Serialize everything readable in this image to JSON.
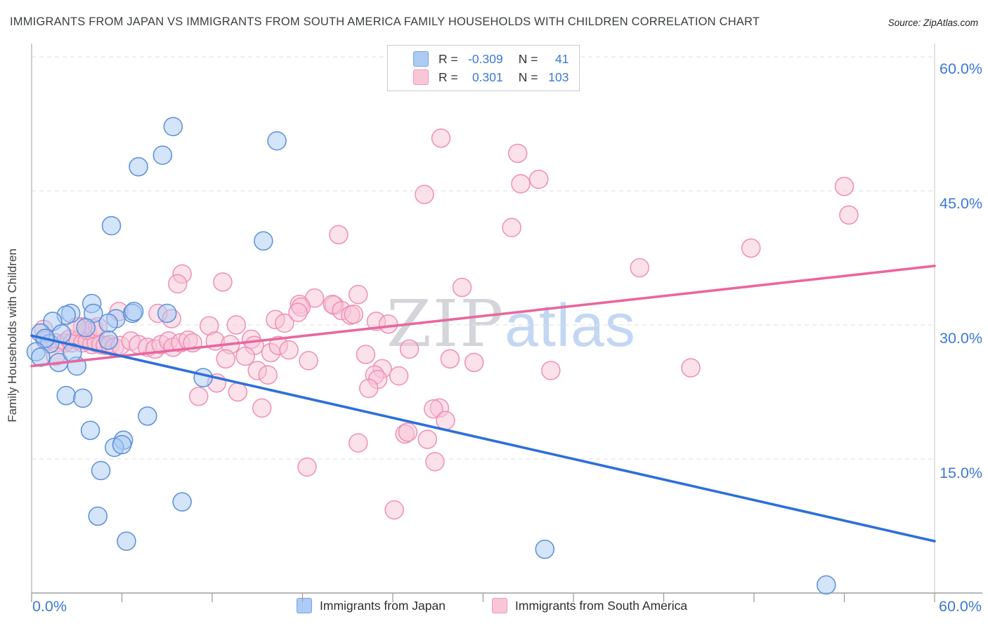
{
  "header": {
    "title": "IMMIGRANTS FROM JAPAN VS IMMIGRANTS FROM SOUTH AMERICA FAMILY HOUSEHOLDS WITH CHILDREN CORRELATION CHART",
    "source": "Source: ZipAtlas.com"
  },
  "stats_legend": {
    "rows": [
      {
        "series": "Immigrants from Japan",
        "r_label": "R =",
        "r_value": "-0.309",
        "n_label": "N =",
        "n_value": "41"
      },
      {
        "series": "Immigrants from South America",
        "r_label": "R =",
        "r_value": "0.301",
        "n_label": "N =",
        "n_value": "103"
      }
    ]
  },
  "watermark": {
    "zip": "ZIP",
    "atlas": "atlas"
  },
  "bottom_legend": {
    "items": [
      {
        "label": "Immigrants from Japan"
      },
      {
        "label": "Immigrants from South America"
      }
    ]
  },
  "chart_data": {
    "type": "scatter",
    "title": "Immigrants from Japan vs Immigrants from South America — Family Households with Children",
    "xlabel": "",
    "ylabel": "Family Households with Children",
    "xlim": [
      0,
      60
    ],
    "ylim": [
      0,
      60
    ],
    "grid": "horizontal-dashed",
    "legend_position": "bottom",
    "y_tick_labels": [
      "60.0%",
      "45.0%",
      "30.0%",
      "15.0%"
    ],
    "x_tick_labels": {
      "min": "0.0%",
      "max": "60.0%"
    },
    "series": [
      {
        "name": "Immigrants from Japan",
        "r": -0.309,
        "n": 41,
        "point_fill": "#a9c9f4",
        "point_edge": "#5a8fd9",
        "trend_color": "#2d6fdb",
        "trend": {
          "x": [
            0,
            60
          ],
          "y": [
            28.8,
            5.8
          ]
        },
        "points": [
          [
            9.4,
            52.2
          ],
          [
            16.3,
            50.6
          ],
          [
            8.7,
            49.0
          ],
          [
            7.1,
            47.7
          ],
          [
            5.3,
            41.1
          ],
          [
            15.4,
            39.4
          ],
          [
            4.0,
            32.4
          ],
          [
            2.6,
            31.3
          ],
          [
            5.6,
            30.7
          ],
          [
            9.0,
            31.3
          ],
          [
            2.3,
            31.1
          ],
          [
            4.1,
            31.3
          ],
          [
            5.1,
            30.2
          ],
          [
            1.4,
            30.4
          ],
          [
            6.7,
            31.3
          ],
          [
            6.8,
            31.5
          ],
          [
            0.6,
            29.1
          ],
          [
            1.2,
            27.9
          ],
          [
            2.0,
            29.0
          ],
          [
            0.9,
            28.5
          ],
          [
            0.3,
            27.0
          ],
          [
            0.6,
            26.4
          ],
          [
            1.8,
            25.8
          ],
          [
            3.0,
            25.4
          ],
          [
            5.1,
            28.3
          ],
          [
            2.7,
            26.9
          ],
          [
            3.6,
            29.7
          ],
          [
            11.4,
            24.1
          ],
          [
            2.3,
            22.1
          ],
          [
            3.4,
            21.8
          ],
          [
            7.7,
            19.8
          ],
          [
            3.9,
            18.2
          ],
          [
            6.1,
            17.1
          ],
          [
            5.5,
            16.3
          ],
          [
            6.0,
            16.6
          ],
          [
            4.6,
            13.7
          ],
          [
            10.0,
            10.2
          ],
          [
            4.4,
            8.6
          ],
          [
            6.3,
            5.8
          ],
          [
            34.1,
            4.9
          ],
          [
            52.8,
            0.9
          ]
        ]
      },
      {
        "name": "Immigrants from South America",
        "r": 0.301,
        "n": 103,
        "point_fill": "#f8c3d6",
        "point_edge": "#f08eb4",
        "trend_color": "#e8679f",
        "trend": {
          "x": [
            0,
            60
          ],
          "y": [
            25.4,
            36.6
          ]
        },
        "points": [
          [
            27.2,
            50.9
          ],
          [
            32.3,
            49.2
          ],
          [
            33.7,
            46.3
          ],
          [
            32.5,
            45.8
          ],
          [
            26.1,
            44.6
          ],
          [
            54.0,
            45.5
          ],
          [
            54.3,
            42.3
          ],
          [
            31.9,
            40.9
          ],
          [
            20.4,
            40.1
          ],
          [
            40.4,
            36.4
          ],
          [
            47.8,
            38.6
          ],
          [
            28.6,
            34.2
          ],
          [
            10.0,
            35.7
          ],
          [
            9.7,
            34.6
          ],
          [
            12.7,
            34.8
          ],
          [
            17.8,
            32.3
          ],
          [
            18.8,
            33.0
          ],
          [
            21.7,
            33.4
          ],
          [
            20.1,
            32.2
          ],
          [
            17.9,
            32.0
          ],
          [
            20.0,
            32.3
          ],
          [
            11.8,
            29.9
          ],
          [
            13.6,
            30.0
          ],
          [
            16.2,
            30.6
          ],
          [
            16.8,
            30.2
          ],
          [
            17.7,
            31.4
          ],
          [
            20.6,
            31.6
          ],
          [
            21.2,
            31.1
          ],
          [
            21.4,
            31.2
          ],
          [
            22.9,
            30.4
          ],
          [
            23.7,
            30.1
          ],
          [
            5.8,
            31.5
          ],
          [
            8.4,
            31.3
          ],
          [
            9.3,
            30.7
          ],
          [
            12.2,
            28.2
          ],
          [
            13.2,
            27.8
          ],
          [
            14.6,
            28.4
          ],
          [
            14.8,
            27.7
          ],
          [
            12.9,
            26.2
          ],
          [
            14.2,
            26.5
          ],
          [
            15.9,
            26.9
          ],
          [
            16.4,
            27.7
          ],
          [
            17.1,
            27.2
          ],
          [
            18.4,
            26.0
          ],
          [
            22.2,
            26.7
          ],
          [
            25.1,
            27.3
          ],
          [
            27.8,
            26.2
          ],
          [
            29.4,
            25.8
          ],
          [
            43.8,
            25.2
          ],
          [
            34.5,
            24.9
          ],
          [
            15.0,
            24.9
          ],
          [
            15.7,
            24.4
          ],
          [
            23.3,
            25.1
          ],
          [
            22.8,
            24.4
          ],
          [
            24.4,
            24.3
          ],
          [
            23.0,
            23.9
          ],
          [
            12.3,
            23.5
          ],
          [
            13.7,
            22.5
          ],
          [
            15.3,
            20.7
          ],
          [
            22.4,
            22.9
          ],
          [
            11.1,
            22.0
          ],
          [
            27.1,
            20.7
          ],
          [
            26.7,
            20.6
          ],
          [
            24.8,
            17.8
          ],
          [
            25.0,
            18.0
          ],
          [
            26.3,
            17.2
          ],
          [
            21.7,
            16.8
          ],
          [
            26.8,
            14.7
          ],
          [
            18.3,
            14.1
          ],
          [
            24.1,
            9.3
          ],
          [
            27.5,
            19.3
          ],
          [
            0.8,
            29.5
          ],
          [
            0.9,
            28.3
          ],
          [
            1.6,
            28.0
          ],
          [
            2.2,
            28.0
          ],
          [
            2.5,
            28.4
          ],
          [
            2.7,
            28.0
          ],
          [
            3.1,
            28.3
          ],
          [
            3.4,
            28.0
          ],
          [
            3.7,
            28.2
          ],
          [
            4.0,
            27.8
          ],
          [
            4.3,
            28.0
          ],
          [
            4.6,
            27.8
          ],
          [
            4.9,
            27.7
          ],
          [
            5.2,
            27.8
          ],
          [
            5.5,
            27.5
          ],
          [
            5.9,
            27.7
          ],
          [
            3.7,
            29.4
          ],
          [
            4.1,
            29.6
          ],
          [
            4.4,
            29.8
          ],
          [
            3.4,
            29.8
          ],
          [
            3.0,
            29.8
          ],
          [
            6.6,
            28.2
          ],
          [
            7.1,
            27.8
          ],
          [
            7.7,
            27.5
          ],
          [
            8.2,
            27.3
          ],
          [
            8.6,
            27.8
          ],
          [
            9.1,
            28.2
          ],
          [
            9.4,
            27.5
          ],
          [
            9.9,
            28.0
          ],
          [
            10.4,
            28.3
          ],
          [
            10.7,
            28.0
          ],
          [
            1.6,
            26.5
          ]
        ]
      }
    ]
  }
}
